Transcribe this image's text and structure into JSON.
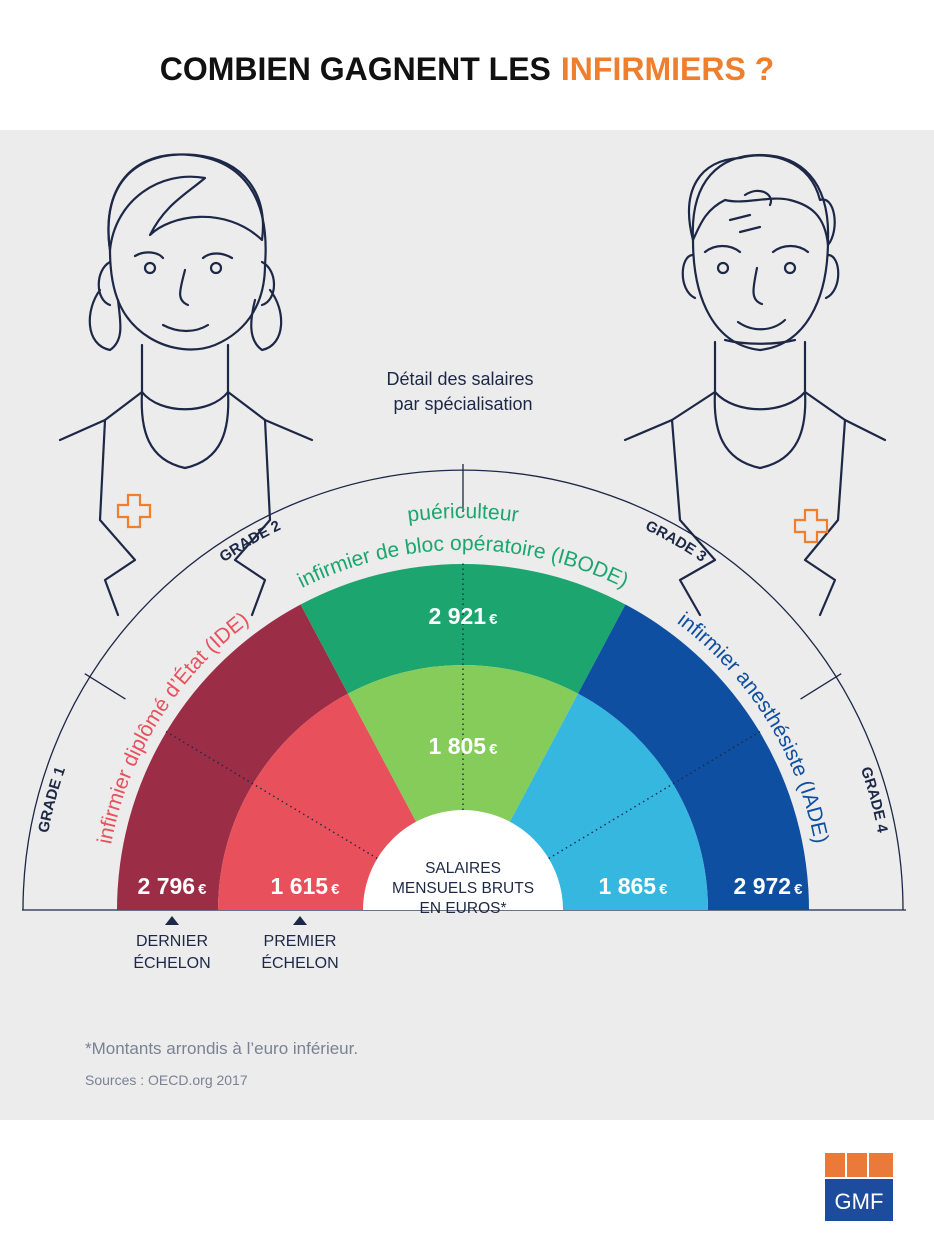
{
  "header": {
    "title": "COMBIEN GAGNENT LES",
    "title_highlight": "INFIRMIERS ?"
  },
  "subtitle": [
    "Détail des salaires",
    "par spécialisation"
  ],
  "grades": [
    "GRADE 1",
    "GRADE 2",
    "GRADE 3",
    "GRADE 4"
  ],
  "currency": "€",
  "specialisations": [
    {
      "labels": [
        "infirmier diplômé d’État (IDE)"
      ],
      "dernier_echelon": "2 796",
      "premier_echelon": "1 615"
    },
    {
      "labels": [
        "puériculteur",
        "infirmier de bloc opératoire (IBODE)"
      ],
      "dernier_echelon": "2 921",
      "premier_echelon": "1 805"
    },
    {
      "labels": [
        "infirmier anesthésiste (IADE)"
      ],
      "dernier_echelon": "2 972",
      "premier_echelon": "1 865"
    }
  ],
  "center_label": [
    "SALAIRES",
    "MENSUELS BRUTS",
    "EN EUROS*"
  ],
  "legend": {
    "dernier": [
      "DERNIER",
      "ÉCHELON"
    ],
    "premier": [
      "PREMIER",
      "ÉCHELON"
    ]
  },
  "notes": {
    "footnote": "*Montants arrondis à l’euro inférieur.",
    "source": "Sources : OECD.org 2017"
  },
  "logo": "GMF"
}
